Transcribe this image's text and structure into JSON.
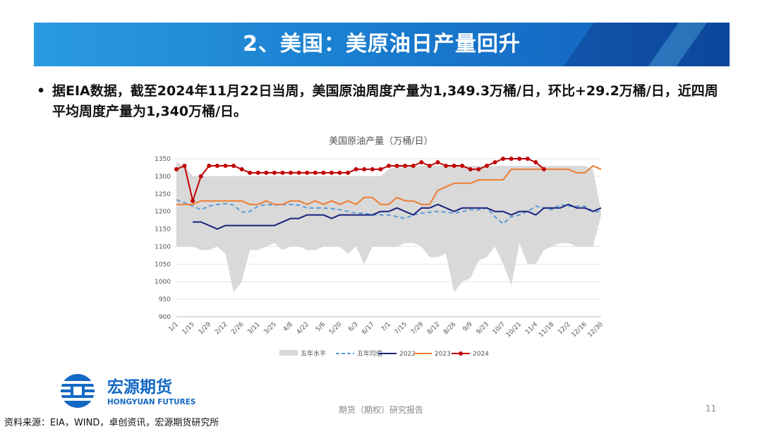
{
  "header": {
    "title": "2、美国：美原油日产量回升"
  },
  "bullet": {
    "marker": "•",
    "text": "据EIA数据，截至2024年11月22日当周，美国原油周度产量为1,349.3万桶/日，环比+29.2万桶/日，近四周平均周度产量为1,340万桶/日。"
  },
  "brand": {
    "name": "宏源期货",
    "name_en": "HONGYUAN FUTURES",
    "primary": "#1469c4",
    "accent": "#2a9be0"
  },
  "footer": {
    "label": "期货（期权）研究报告",
    "page": "11"
  },
  "source": "资料来源：EIA，WIND，卓创资讯，宏源期货研究所",
  "chart_data": {
    "type": "line",
    "title": "美国原油产量（万桶/日）",
    "xlabel": "",
    "ylabel": "",
    "ylim": [
      900,
      1350
    ],
    "yticks": [
      900,
      950,
      1000,
      1050,
      1100,
      1150,
      1200,
      1250,
      1300,
      1350
    ],
    "weeks": 53,
    "xtick_labels": [
      "1/1",
      "1/15",
      "1/29",
      "2/12",
      "2/26",
      "3/11",
      "3/25",
      "4/8",
      "4/22",
      "5/6",
      "5/20",
      "6/3",
      "6/17",
      "7/1",
      "7/15",
      "7/29",
      "8/12",
      "8/26",
      "9/9",
      "9/23",
      "10/7",
      "10/21",
      "11/4",
      "11/18",
      "12/2",
      "12/16",
      "12/30"
    ],
    "range_band": {
      "name": "五年水平",
      "low": [
        1100,
        1100,
        1100,
        1090,
        1090,
        1100,
        1080,
        970,
        1000,
        1090,
        1090,
        1100,
        1110,
        1090,
        1100,
        1100,
        1090,
        1090,
        1100,
        1100,
        1100,
        1080,
        1100,
        1050,
        1100,
        1100,
        1100,
        1100,
        1110,
        1110,
        1100,
        1070,
        1070,
        1080,
        970,
        1000,
        1010,
        1060,
        1070,
        1100,
        1050,
        990,
        1110,
        1050,
        1050,
        1090,
        1100,
        1110,
        1110,
        1100,
        1100,
        1100,
        1190
      ],
      "high": [
        1340,
        1330,
        1300,
        1300,
        1300,
        1300,
        1300,
        1300,
        1300,
        1300,
        1300,
        1300,
        1300,
        1300,
        1300,
        1300,
        1300,
        1300,
        1300,
        1300,
        1300,
        1300,
        1300,
        1300,
        1300,
        1300,
        1320,
        1330,
        1330,
        1330,
        1330,
        1330,
        1330,
        1330,
        1330,
        1330,
        1330,
        1330,
        1330,
        1330,
        1330,
        1330,
        1330,
        1330,
        1330,
        1330,
        1330,
        1330,
        1330,
        1330,
        1330,
        1320,
        1200
      ]
    },
    "series": [
      {
        "name": "五年均值",
        "color": "#5b9bd5",
        "style": "dashed",
        "values": [
          1233,
          1225,
          1215,
          1205,
          1215,
          1220,
          1222,
          1218,
          1198,
          1200,
          1215,
          1220,
          1218,
          1220,
          1220,
          1218,
          1210,
          1210,
          1210,
          1208,
          1205,
          1200,
          1195,
          1195,
          1190,
          1190,
          1190,
          1185,
          1180,
          1190,
          1195,
          1198,
          1200,
          1198,
          1195,
          1200,
          1205,
          1205,
          1210,
          1185,
          1165,
          1185,
          1190,
          1200,
          1215,
          1210,
          1205,
          1220,
          1215,
          1215,
          1215,
          1200,
          1200
        ]
      },
      {
        "name": "2022",
        "color": "#1a237e",
        "style": "solid",
        "values": [
          null,
          null,
          1170,
          1170,
          1160,
          1150,
          1160,
          1160,
          1160,
          1160,
          1160,
          1160,
          1160,
          1170,
          1180,
          1180,
          1190,
          1190,
          1190,
          1180,
          1190,
          1190,
          1190,
          1190,
          1190,
          1200,
          1200,
          1210,
          1200,
          1190,
          1210,
          1210,
          1220,
          1210,
          1200,
          1210,
          1210,
          1210,
          1210,
          1200,
          1200,
          1190,
          1200,
          1200,
          1190,
          1210,
          1210,
          1210,
          1220,
          1210,
          1210,
          1200,
          1210
        ]
      },
      {
        "name": "2023",
        "color": "#ed7d31",
        "style": "solid",
        "values": [
          1220,
          1220,
          1220,
          1230,
          1230,
          1230,
          1230,
          1230,
          1230,
          1220,
          1220,
          1230,
          1220,
          1220,
          1230,
          1230,
          1220,
          1230,
          1220,
          1230,
          1220,
          1230,
          1220,
          1240,
          1240,
          1220,
          1220,
          1240,
          1230,
          1230,
          1220,
          1220,
          1260,
          1270,
          1280,
          1280,
          1280,
          1290,
          1290,
          1290,
          1290,
          1320,
          1320,
          1320,
          1320,
          1320,
          1320,
          1320,
          1320,
          1310,
          1310,
          1330,
          1320
        ]
      },
      {
        "name": "2024",
        "color": "#c00000",
        "style": "solid-marker",
        "values": [
          1320,
          1330,
          1230,
          1300,
          1330,
          1330,
          1330,
          1330,
          1320,
          1310,
          1310,
          1310,
          1310,
          1310,
          1310,
          1310,
          1310,
          1310,
          1310,
          1310,
          1310,
          1310,
          1320,
          1320,
          1320,
          1320,
          1330,
          1330,
          1330,
          1330,
          1340,
          1330,
          1340,
          1330,
          1330,
          1330,
          1320,
          1320,
          1330,
          1340,
          1350,
          1350,
          1350,
          1350,
          1340,
          1320
        ]
      }
    ],
    "legend": [
      "五年水平",
      "五年均值",
      "2022",
      "2023",
      "2024"
    ],
    "legend_position": "bottom",
    "grid": true
  }
}
